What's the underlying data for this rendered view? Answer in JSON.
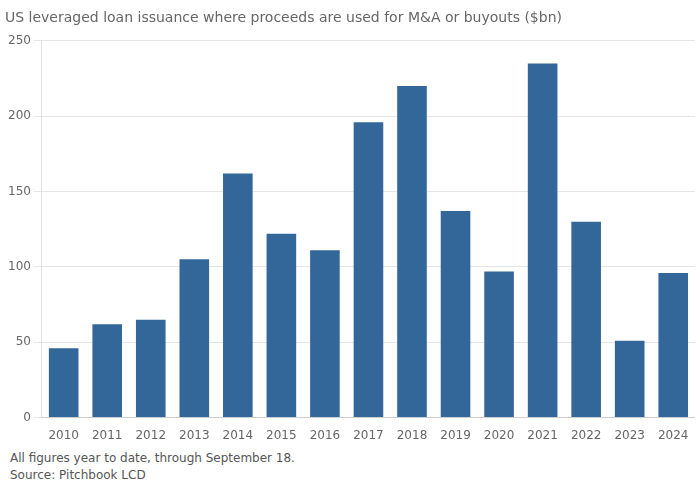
{
  "chart_data": {
    "type": "bar",
    "title": "US leveraged loan issuance where proceeds are used for M&A or buyouts ($bn)",
    "annotations": [
      "All figures year to date, through September 18.",
      "Source: Pitchbook LCD"
    ],
    "categories": [
      "2010",
      "2011",
      "2012",
      "2013",
      "2014",
      "2015",
      "2016",
      "2017",
      "2018",
      "2019",
      "2020",
      "2021",
      "2022",
      "2023",
      "2024"
    ],
    "values": [
      46,
      62,
      65,
      105,
      162,
      122,
      111,
      196,
      220,
      137,
      97,
      235,
      130,
      51,
      96
    ],
    "color": "#336699",
    "ylim": [
      0,
      250
    ],
    "yticks": [
      0,
      50,
      100,
      150,
      200,
      250
    ],
    "grid": true
  }
}
